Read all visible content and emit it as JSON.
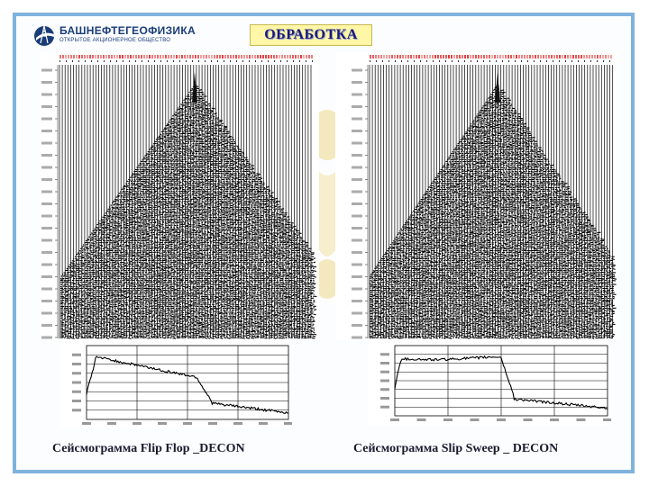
{
  "slide": {
    "title": "ОБРАБОТКА",
    "logo": {
      "name": "БАШНЕФТЕГЕОФИЗИКА",
      "subtitle": "ОТКРЫТОЕ АКЦИОНЕРНОЕ ОБЩЕСТВО",
      "icon": "oil-derrick-logo-icon"
    },
    "colors": {
      "frame": "#7fb2dc",
      "title_bg": "#fff6a8",
      "title_text": "#1a1a7a",
      "header_text": "#e23a3a",
      "brand": "#1a3d78"
    }
  },
  "seismograms": [
    {
      "caption": "Сейсмограмма Flip Flop _DECON"
    },
    {
      "caption": "Сейсмограмма Slip Sweep _ DECON"
    }
  ]
}
